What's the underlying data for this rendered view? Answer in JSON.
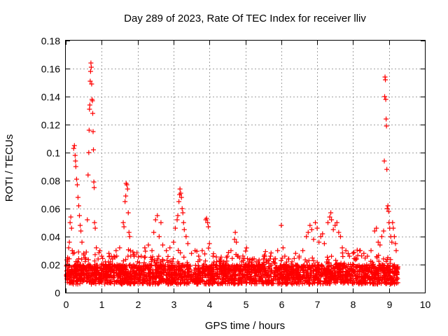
{
  "chart_data": {
    "type": "scatter",
    "title": "Day 289 of 2023, Rate Of TEC Index for receiver lliv",
    "xlabel": "GPS time / hours",
    "ylabel": "ROTI / TECUs",
    "xlim": [
      0,
      10
    ],
    "ylim": [
      0,
      0.18
    ],
    "x_ticks": [
      0,
      1,
      2,
      3,
      4,
      5,
      6,
      7,
      8,
      9,
      10
    ],
    "y_ticks": [
      0,
      0.02,
      0.04,
      0.06,
      0.08,
      0.1,
      0.12,
      0.14,
      0.16,
      0.18
    ],
    "x_tick_labels": [
      "0",
      "1",
      "2",
      "3",
      "4",
      "5",
      "6",
      "7",
      "8",
      "9",
      "10"
    ],
    "y_tick_labels": [
      "0",
      "0.02",
      "0.04",
      "0.06",
      "0.08",
      "0.1",
      "0.12",
      "0.14",
      "0.16",
      "0.18"
    ],
    "grid": true,
    "marker": "+",
    "series": [
      {
        "name": "ROTI",
        "color": "#ff0000",
        "points": [
          [
            0.02,
            0.012
          ],
          [
            0.05,
            0.022
          ],
          [
            0.08,
            0.032
          ],
          [
            0.1,
            0.036
          ],
          [
            0.12,
            0.05
          ],
          [
            0.14,
            0.054
          ],
          [
            0.16,
            0.046
          ],
          [
            0.18,
            0.03
          ],
          [
            0.2,
            0.028
          ],
          [
            0.22,
            0.103
          ],
          [
            0.24,
            0.105
          ],
          [
            0.26,
            0.098
          ],
          [
            0.27,
            0.094
          ],
          [
            0.28,
            0.09
          ],
          [
            0.3,
            0.081
          ],
          [
            0.32,
            0.077
          ],
          [
            0.34,
            0.068
          ],
          [
            0.36,
            0.062
          ],
          [
            0.38,
            0.055
          ],
          [
            0.4,
            0.048
          ],
          [
            0.42,
            0.044
          ],
          [
            0.45,
            0.036
          ],
          [
            0.5,
            0.028
          ],
          [
            0.55,
            0.024
          ],
          [
            0.6,
            0.052
          ],
          [
            0.62,
            0.084
          ],
          [
            0.64,
            0.1
          ],
          [
            0.65,
            0.116
          ],
          [
            0.66,
            0.131
          ],
          [
            0.67,
            0.134
          ],
          [
            0.68,
            0.151
          ],
          [
            0.69,
            0.158
          ],
          [
            0.7,
            0.164
          ],
          [
            0.71,
            0.161
          ],
          [
            0.72,
            0.149
          ],
          [
            0.73,
            0.138
          ],
          [
            0.74,
            0.137
          ],
          [
            0.75,
            0.128
          ],
          [
            0.76,
            0.115
          ],
          [
            0.77,
            0.102
          ],
          [
            0.78,
            0.079
          ],
          [
            0.79,
            0.075
          ],
          [
            0.8,
            0.05
          ],
          [
            0.82,
            0.046
          ],
          [
            0.85,
            0.032
          ],
          [
            0.9,
            0.024
          ],
          [
            0.95,
            0.03
          ],
          [
            1.0,
            0.026
          ],
          [
            1.1,
            0.022
          ],
          [
            1.2,
            0.028
          ],
          [
            1.3,
            0.024
          ],
          [
            1.4,
            0.03
          ],
          [
            1.5,
            0.032
          ],
          [
            1.6,
            0.05
          ],
          [
            1.62,
            0.047
          ],
          [
            1.65,
            0.065
          ],
          [
            1.67,
            0.069
          ],
          [
            1.68,
            0.078
          ],
          [
            1.7,
            0.077
          ],
          [
            1.72,
            0.074
          ],
          [
            1.74,
            0.057
          ],
          [
            1.76,
            0.043
          ],
          [
            1.78,
            0.04
          ],
          [
            1.8,
            0.03
          ],
          [
            1.9,
            0.026
          ],
          [
            2.0,
            0.022
          ],
          [
            2.1,
            0.026
          ],
          [
            2.2,
            0.032
          ],
          [
            2.3,
            0.034
          ],
          [
            2.4,
            0.03
          ],
          [
            2.45,
            0.043
          ],
          [
            2.5,
            0.052
          ],
          [
            2.55,
            0.055
          ],
          [
            2.6,
            0.04
          ],
          [
            2.65,
            0.05
          ],
          [
            2.7,
            0.034
          ],
          [
            2.8,
            0.03
          ],
          [
            2.9,
            0.032
          ],
          [
            3.0,
            0.036
          ],
          [
            3.05,
            0.046
          ],
          [
            3.1,
            0.052
          ],
          [
            3.12,
            0.055
          ],
          [
            3.15,
            0.065
          ],
          [
            3.17,
            0.07
          ],
          [
            3.18,
            0.074
          ],
          [
            3.2,
            0.071
          ],
          [
            3.22,
            0.068
          ],
          [
            3.24,
            0.06
          ],
          [
            3.26,
            0.057
          ],
          [
            3.28,
            0.05
          ],
          [
            3.3,
            0.045
          ],
          [
            3.35,
            0.04
          ],
          [
            3.4,
            0.035
          ],
          [
            3.5,
            0.028
          ],
          [
            3.6,
            0.03
          ],
          [
            3.7,
            0.026
          ],
          [
            3.8,
            0.03
          ],
          [
            3.9,
            0.052
          ],
          [
            3.92,
            0.053
          ],
          [
            3.95,
            0.05
          ],
          [
            3.97,
            0.047
          ],
          [
            4.0,
            0.035
          ],
          [
            4.1,
            0.026
          ],
          [
            4.2,
            0.022
          ],
          [
            4.3,
            0.024
          ],
          [
            4.4,
            0.022
          ],
          [
            4.5,
            0.026
          ],
          [
            4.6,
            0.03
          ],
          [
            4.7,
            0.038
          ],
          [
            4.72,
            0.043
          ],
          [
            4.75,
            0.036
          ],
          [
            4.8,
            0.026
          ],
          [
            4.9,
            0.022
          ],
          [
            5.0,
            0.02
          ],
          [
            5.1,
            0.022
          ],
          [
            5.2,
            0.024
          ],
          [
            5.3,
            0.022
          ],
          [
            5.4,
            0.02
          ],
          [
            5.5,
            0.024
          ],
          [
            5.6,
            0.022
          ],
          [
            5.7,
            0.026
          ],
          [
            5.8,
            0.024
          ],
          [
            5.9,
            0.03
          ],
          [
            6.0,
            0.048
          ],
          [
            6.05,
            0.032
          ],
          [
            6.1,
            0.026
          ],
          [
            6.2,
            0.024
          ],
          [
            6.3,
            0.022
          ],
          [
            6.4,
            0.028
          ],
          [
            6.5,
            0.026
          ],
          [
            6.6,
            0.03
          ],
          [
            6.7,
            0.04
          ],
          [
            6.75,
            0.043
          ],
          [
            6.8,
            0.048
          ],
          [
            6.85,
            0.045
          ],
          [
            6.9,
            0.038
          ],
          [
            6.95,
            0.05
          ],
          [
            7.0,
            0.046
          ],
          [
            7.05,
            0.036
          ],
          [
            7.1,
            0.04
          ],
          [
            7.15,
            0.042
          ],
          [
            7.2,
            0.035
          ],
          [
            7.3,
            0.05
          ],
          [
            7.35,
            0.054
          ],
          [
            7.38,
            0.057
          ],
          [
            7.4,
            0.052
          ],
          [
            7.45,
            0.045
          ],
          [
            7.5,
            0.048
          ],
          [
            7.55,
            0.05
          ],
          [
            7.6,
            0.043
          ],
          [
            7.65,
            0.04
          ],
          [
            7.7,
            0.032
          ],
          [
            7.8,
            0.03
          ],
          [
            7.9,
            0.026
          ],
          [
            8.0,
            0.028
          ],
          [
            8.1,
            0.024
          ],
          [
            8.2,
            0.03
          ],
          [
            8.3,
            0.028
          ],
          [
            8.4,
            0.026
          ],
          [
            8.5,
            0.03
          ],
          [
            8.6,
            0.044
          ],
          [
            8.65,
            0.046
          ],
          [
            8.7,
            0.036
          ],
          [
            8.75,
            0.034
          ],
          [
            8.8,
            0.04
          ],
          [
            8.85,
            0.044
          ],
          [
            8.87,
            0.094
          ],
          [
            8.88,
            0.14
          ],
          [
            8.89,
            0.154
          ],
          [
            8.9,
            0.152
          ],
          [
            8.91,
            0.138
          ],
          [
            8.92,
            0.124
          ],
          [
            8.93,
            0.119
          ],
          [
            8.94,
            0.088
          ],
          [
            8.95,
            0.06
          ],
          [
            8.97,
            0.062
          ],
          [
            8.99,
            0.058
          ],
          [
            9.0,
            0.05
          ],
          [
            9.02,
            0.046
          ],
          [
            9.05,
            0.04
          ],
          [
            9.08,
            0.036
          ],
          [
            9.1,
            0.05
          ],
          [
            9.12,
            0.046
          ],
          [
            9.15,
            0.04
          ],
          [
            9.18,
            0.035
          ],
          [
            9.2,
            0.03
          ],
          [
            9.22,
            0.015
          ],
          [
            9.24,
            0.01
          ]
        ]
      }
    ]
  }
}
